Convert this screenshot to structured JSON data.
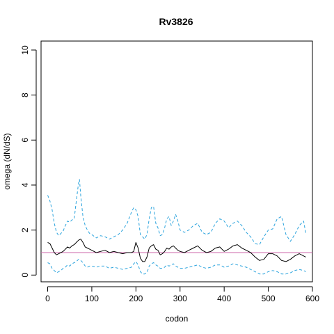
{
  "chart_data": {
    "type": "line",
    "title": "Rv3826",
    "xlabel": "codon",
    "ylabel": "omega (dN/dS)",
    "xlim": [
      -15,
      600
    ],
    "ylim": [
      -0.3,
      10.4
    ],
    "x_ticks": [
      0,
      100,
      200,
      300,
      400,
      500,
      600
    ],
    "y_ticks": [
      0,
      2,
      4,
      6,
      8,
      10
    ],
    "grid": false,
    "reference_line": {
      "y": 1,
      "color": "#cc66aa"
    },
    "series": [
      {
        "style": "solid",
        "color": "#000000",
        "x": [
          0,
          5,
          10,
          15,
          20,
          25,
          30,
          35,
          40,
          45,
          50,
          55,
          60,
          65,
          70,
          75,
          80,
          85,
          90,
          95,
          100,
          110,
          120,
          130,
          140,
          150,
          160,
          170,
          180,
          190,
          195,
          200,
          205,
          210,
          215,
          220,
          225,
          230,
          235,
          240,
          245,
          250,
          255,
          260,
          265,
          270,
          275,
          280,
          285,
          290,
          295,
          300,
          310,
          320,
          330,
          340,
          350,
          360,
          370,
          380,
          390,
          400,
          410,
          420,
          430,
          440,
          450,
          460,
          470,
          480,
          490,
          500,
          510,
          520,
          530,
          540,
          550,
          560,
          570,
          580,
          585
        ],
        "y": [
          1.45,
          1.4,
          1.2,
          1.0,
          0.9,
          0.95,
          1.0,
          1.05,
          1.15,
          1.25,
          1.2,
          1.3,
          1.35,
          1.45,
          1.55,
          1.6,
          1.45,
          1.25,
          1.2,
          1.15,
          1.1,
          1.0,
          1.05,
          1.1,
          1.0,
          1.05,
          1.0,
          0.95,
          1.0,
          1.0,
          1.05,
          1.45,
          1.2,
          0.75,
          0.6,
          0.6,
          0.8,
          1.2,
          1.3,
          1.35,
          1.15,
          1.1,
          0.9,
          0.95,
          1.05,
          1.2,
          1.15,
          1.25,
          1.3,
          1.2,
          1.1,
          1.05,
          1.0,
          1.1,
          1.2,
          1.3,
          1.1,
          1.0,
          1.05,
          1.2,
          1.25,
          1.05,
          1.15,
          1.3,
          1.35,
          1.2,
          1.1,
          1.0,
          0.8,
          0.65,
          0.7,
          0.95,
          0.95,
          0.85,
          0.65,
          0.6,
          0.7,
          0.85,
          0.95,
          0.85,
          0.8
        ]
      },
      {
        "style": "dashed",
        "color": "#2aa3dd",
        "x": [
          0,
          5,
          10,
          15,
          20,
          25,
          30,
          35,
          40,
          45,
          50,
          55,
          60,
          65,
          70,
          72,
          75,
          80,
          85,
          90,
          95,
          100,
          110,
          120,
          130,
          140,
          150,
          160,
          170,
          180,
          190,
          195,
          200,
          205,
          210,
          215,
          220,
          225,
          230,
          235,
          240,
          245,
          250,
          255,
          260,
          265,
          270,
          275,
          280,
          285,
          290,
          295,
          300,
          310,
          320,
          330,
          340,
          350,
          360,
          370,
          380,
          390,
          400,
          410,
          420,
          430,
          440,
          450,
          460,
          470,
          480,
          490,
          500,
          510,
          520,
          530,
          540,
          550,
          560,
          570,
          580,
          585
        ],
        "y": [
          3.55,
          3.3,
          2.9,
          2.3,
          1.9,
          1.75,
          1.85,
          1.95,
          2.2,
          2.4,
          2.35,
          2.45,
          2.5,
          3.3,
          4.1,
          4.25,
          3.5,
          2.6,
          2.2,
          2.0,
          1.85,
          1.8,
          1.65,
          1.75,
          1.7,
          1.6,
          1.7,
          1.8,
          2.0,
          2.3,
          2.8,
          3.0,
          2.9,
          2.6,
          1.8,
          1.7,
          1.6,
          1.8,
          2.5,
          3.0,
          3.05,
          2.3,
          2.1,
          1.75,
          1.8,
          2.1,
          2.5,
          2.6,
          2.2,
          2.4,
          2.7,
          2.4,
          2.0,
          1.9,
          2.0,
          2.2,
          2.3,
          1.9,
          1.8,
          1.9,
          2.3,
          2.5,
          2.4,
          2.1,
          2.3,
          2.4,
          2.2,
          1.9,
          1.7,
          1.4,
          1.35,
          1.7,
          2.0,
          2.05,
          2.5,
          2.6,
          1.8,
          1.5,
          1.8,
          2.2,
          2.4,
          1.85
        ]
      },
      {
        "style": "dashed",
        "color": "#2aa3dd",
        "x": [
          0,
          5,
          10,
          15,
          20,
          25,
          30,
          35,
          40,
          45,
          50,
          55,
          60,
          65,
          70,
          75,
          80,
          85,
          90,
          95,
          100,
          110,
          120,
          130,
          140,
          150,
          160,
          170,
          180,
          190,
          195,
          200,
          205,
          210,
          215,
          220,
          225,
          230,
          235,
          240,
          245,
          250,
          255,
          260,
          265,
          270,
          275,
          280,
          285,
          290,
          295,
          300,
          310,
          320,
          330,
          340,
          350,
          360,
          370,
          380,
          390,
          400,
          410,
          420,
          430,
          440,
          450,
          460,
          470,
          480,
          490,
          500,
          510,
          520,
          530,
          540,
          550,
          560,
          570,
          580,
          585
        ],
        "y": [
          0.55,
          0.5,
          0.3,
          0.2,
          0.1,
          0.15,
          0.2,
          0.3,
          0.35,
          0.45,
          0.4,
          0.5,
          0.55,
          0.6,
          0.7,
          0.65,
          0.55,
          0.4,
          0.35,
          0.4,
          0.4,
          0.35,
          0.4,
          0.4,
          0.3,
          0.35,
          0.3,
          0.25,
          0.3,
          0.35,
          0.5,
          0.6,
          0.45,
          0.15,
          0.05,
          0.05,
          0.1,
          0.4,
          0.5,
          0.55,
          0.45,
          0.4,
          0.3,
          0.3,
          0.35,
          0.45,
          0.4,
          0.45,
          0.5,
          0.4,
          0.35,
          0.3,
          0.3,
          0.35,
          0.4,
          0.45,
          0.35,
          0.3,
          0.35,
          0.45,
          0.45,
          0.35,
          0.4,
          0.5,
          0.45,
          0.4,
          0.35,
          0.25,
          0.15,
          0.05,
          0.05,
          0.15,
          0.2,
          0.15,
          0.05,
          0.05,
          0.1,
          0.2,
          0.25,
          0.2,
          0.15
        ]
      }
    ]
  }
}
